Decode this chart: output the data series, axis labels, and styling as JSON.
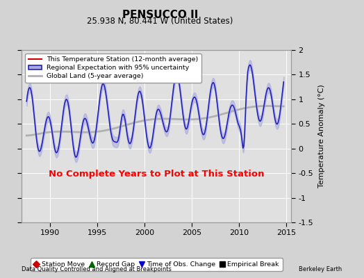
{
  "title": "PENSUCCO II",
  "subtitle": "25.938 N, 80.441 W (United States)",
  "ylabel": "Temperature Anomaly (°C)",
  "xlabel_left": "Data Quality Controlled and Aligned at Breakpoints",
  "xlabel_right": "Berkeley Earth",
  "ylim": [
    -1.5,
    2.0
  ],
  "xlim": [
    1987.0,
    2015.5
  ],
  "xticks": [
    1990,
    1995,
    2000,
    2005,
    2010,
    2015
  ],
  "yticks_right": [
    -1.5,
    -1.0,
    -0.5,
    0.0,
    0.5,
    1.0,
    1.5,
    2.0
  ],
  "ytick_labels_right": [
    "-1.5",
    "-1",
    "-0.5",
    "0",
    "0.5",
    "1",
    "1.5",
    "2"
  ],
  "background_color": "#d3d3d3",
  "plot_bg_color": "#e0e0e0",
  "grid_color": "#ffffff",
  "no_data_text": "No Complete Years to Plot at This Station",
  "no_data_color": "#ff0000",
  "regional_color": "#2222bb",
  "regional_fill": "#aaaadd",
  "global_color": "#b0b0b0",
  "station_color": "#cc0000",
  "legend1": [
    {
      "label": "This Temperature Station (12-month average)",
      "color": "#cc0000",
      "lw": 1.5
    },
    {
      "label": "Regional Expectation with 95% uncertainty",
      "color": "#2222bb",
      "lw": 1.5,
      "fill": "#aaaadd"
    },
    {
      "label": "Global Land (5-year average)",
      "color": "#b0b0b0",
      "lw": 2.0
    }
  ],
  "legend2": [
    {
      "label": "Station Move",
      "marker": "D",
      "color": "#cc0000"
    },
    {
      "label": "Record Gap",
      "marker": "^",
      "color": "#006600"
    },
    {
      "label": "Time of Obs. Change",
      "marker": "v",
      "color": "#0000cc"
    },
    {
      "label": "Empirical Break",
      "marker": "s",
      "color": "#000000"
    }
  ],
  "seed": 42,
  "x_start": 1987.5,
  "x_end": 2014.7,
  "n_points": 330
}
